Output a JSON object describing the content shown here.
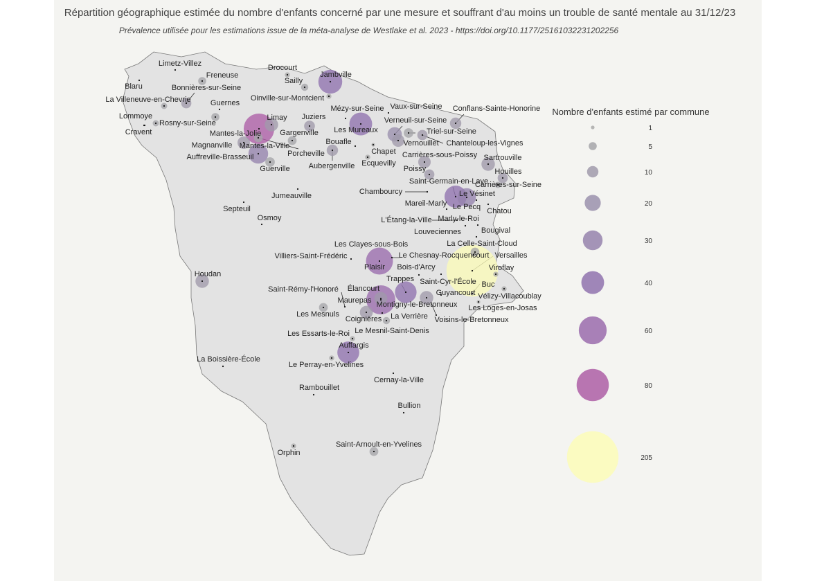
{
  "title": "Répartition géographique estimée du nombre d'enfants concerné par une mesure et souffrant d'au moins un trouble de santé mentale au 31/12/23",
  "subtitle": "Prévalence utilisée pour les estimations issue de la méta-analyse de Westlake et al. 2023 - https://doi.org/10.1177/25161032231202256",
  "legend": {
    "title": "Nombre d'enfants estimé par commune",
    "values": [
      1,
      5,
      10,
      20,
      30,
      40,
      60,
      80,
      205
    ],
    "colors": [
      "#a9a9a9",
      "#a5a5a9",
      "#a09aab",
      "#9a90ad",
      "#9583ad",
      "#8f72ae",
      "#9a6bad",
      "#ad5ea6",
      "#fbfbb8"
    ]
  },
  "communes": [
    {
      "name": "Limetz-Villez",
      "value": 0
    },
    {
      "name": "Blaru",
      "value": 0
    },
    {
      "name": "Freneuse",
      "value": 5
    },
    {
      "name": "Bonnières-sur-Seine",
      "value": 8
    },
    {
      "name": "La Villeneuve-en-Chevrie",
      "value": 3
    },
    {
      "name": "Lommoye",
      "value": 0
    },
    {
      "name": "Rosny-sur-Seine",
      "value": 3
    },
    {
      "name": "Guernes",
      "value": 0
    },
    {
      "name": "Cravent",
      "value": 0
    },
    {
      "name": "Mantes-la-Jolie",
      "value": 72
    },
    {
      "name": "Magnanville",
      "value": 12
    },
    {
      "name": "Mantes-la-Ville",
      "value": 30
    },
    {
      "name": "Limay",
      "value": 14
    },
    {
      "name": "Auffreville-Brasseuil",
      "value": 5
    },
    {
      "name": "Drocourt",
      "value": 2
    },
    {
      "name": "Sailly",
      "value": 4
    },
    {
      "name": "Jambville",
      "value": 44
    },
    {
      "name": "Oinville-sur-Montcient",
      "value": 2
    },
    {
      "name": "Juziers",
      "value": 9
    },
    {
      "name": "Gargenville",
      "value": 6
    },
    {
      "name": "Porcheville",
      "value": 6
    },
    {
      "name": "Guerville",
      "value": 7
    },
    {
      "name": "Jumeauville",
      "value": 0
    },
    {
      "name": "Mézy-sur-Seine",
      "value": 0
    },
    {
      "name": "Les Mureaux",
      "value": 40
    },
    {
      "name": "Bouafle",
      "value": 0
    },
    {
      "name": "Aubergenville",
      "value": 10
    },
    {
      "name": "Chapet",
      "value": 1
    },
    {
      "name": "Ecquevilly",
      "value": 2
    },
    {
      "name": "Vaux-sur-Seine",
      "value": 0
    },
    {
      "name": "Verneuil-sur-Seine",
      "value": 16
    },
    {
      "name": "Vernouillet",
      "value": 12
    },
    {
      "name": "Triel-sur-Seine",
      "value": 7
    },
    {
      "name": "Chanteloup-les-Vignes",
      "value": 8
    },
    {
      "name": "Conflans-Sainte-Honorine",
      "value": 10
    },
    {
      "name": "Carrières-sous-Poissy",
      "value": 12
    },
    {
      "name": "Poissy",
      "value": 8
    },
    {
      "name": "Sartrouville",
      "value": 14
    },
    {
      "name": "Houilles",
      "value": 8
    },
    {
      "name": "Carrières-sur-Seine",
      "value": 3
    },
    {
      "name": "Saint-Germain-en-Laye",
      "value": 38
    },
    {
      "name": "Le Vésinet",
      "value": 0
    },
    {
      "name": "Le Pecq",
      "value": 26
    },
    {
      "name": "Chatou",
      "value": 0
    },
    {
      "name": "Septeuil",
      "value": 0
    },
    {
      "name": "Osmoy",
      "value": 0
    },
    {
      "name": "Chambourcy",
      "value": 0
    },
    {
      "name": "Mareil-Marly",
      "value": 0
    },
    {
      "name": "L'Étang-la-Ville",
      "value": 0
    },
    {
      "name": "Marly-le-Roi",
      "value": 0
    },
    {
      "name": "Louveciennes",
      "value": 0
    },
    {
      "name": "Bougival",
      "value": 0
    },
    {
      "name": "La Celle-Saint-Cloud",
      "value": 6
    },
    {
      "name": "Les Clayes-sous-Bois",
      "value": 0
    },
    {
      "name": "Villiers-Saint-Frédéric",
      "value": 0
    },
    {
      "name": "Le Chesnay-Rocquencourt",
      "value": 0
    },
    {
      "name": "Plaisir",
      "value": 56
    },
    {
      "name": "Versailles",
      "value": 205
    },
    {
      "name": "Bois-d'Arcy",
      "value": 0
    },
    {
      "name": "Trappes",
      "value": 36
    },
    {
      "name": "Viroflay",
      "value": 2
    },
    {
      "name": "Houdan",
      "value": 14
    },
    {
      "name": "Saint-Cyr-l'École",
      "value": 0
    },
    {
      "name": "Buc",
      "value": 1
    },
    {
      "name": "Saint-Rémy-l'Honoré",
      "value": 0
    },
    {
      "name": "Élancourt",
      "value": 13
    },
    {
      "name": "Guyancourt",
      "value": 14
    },
    {
      "name": "Vélizy-Villacoublay",
      "value": 2
    },
    {
      "name": "Maurepas",
      "value": 65
    },
    {
      "name": "Montigny-le-Bretonneux",
      "value": 0
    },
    {
      "name": "Les Loges-en-Josas",
      "value": 1
    },
    {
      "name": "Les Mesnuls",
      "value": 6
    },
    {
      "name": "Coignières",
      "value": 13
    },
    {
      "name": "La Verrière",
      "value": 4
    },
    {
      "name": "Voisins-le-Bretonneux",
      "value": 0
    },
    {
      "name": "Le Mesnil-Saint-Denis",
      "value": 0
    },
    {
      "name": "Les Essarts-le-Roi",
      "value": 2
    },
    {
      "name": "Auffargis",
      "value": 37
    },
    {
      "name": "La Boissière-École",
      "value": 0
    },
    {
      "name": "Le Perray-en-Yvelines",
      "value": 2
    },
    {
      "name": "Cernay-la-Ville",
      "value": 0
    },
    {
      "name": "Rambouillet",
      "value": 0
    },
    {
      "name": "Bullion",
      "value": 0
    },
    {
      "name": "Saint-Arnoult-en-Yvelines",
      "value": 6
    },
    {
      "name": "Orphin",
      "value": 2
    }
  ]
}
